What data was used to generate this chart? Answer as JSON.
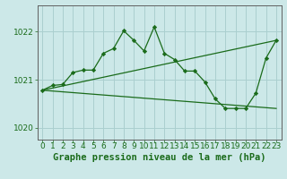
{
  "title": "Graphe pression niveau de la mer (hPa)",
  "background_color": "#cce8e8",
  "grid_color": "#aacfcf",
  "line_color": "#1a6b1a",
  "marker_color": "#1a6b1a",
  "xlim": [
    -0.5,
    23.5
  ],
  "ylim": [
    1019.75,
    1022.55
  ],
  "yticks": [
    1020,
    1021,
    1022
  ],
  "xticks": [
    0,
    1,
    2,
    3,
    4,
    5,
    6,
    7,
    8,
    9,
    10,
    11,
    12,
    13,
    14,
    15,
    16,
    17,
    18,
    19,
    20,
    21,
    22,
    23
  ],
  "line1_x": [
    0,
    1,
    2,
    3,
    4,
    5,
    6,
    7,
    8,
    9,
    10,
    11,
    12,
    13,
    14,
    15,
    16,
    17,
    18,
    19,
    20,
    21,
    22,
    23
  ],
  "line1_y": [
    1020.78,
    1020.88,
    1020.9,
    1021.15,
    1021.2,
    1021.2,
    1021.55,
    1021.65,
    1022.02,
    1021.82,
    1021.6,
    1022.1,
    1021.55,
    1021.42,
    1021.18,
    1021.18,
    1020.95,
    1020.6,
    1020.4,
    1020.4,
    1020.4,
    1020.72,
    1021.45,
    1021.82
  ],
  "line2_x": [
    0,
    23
  ],
  "line2_y": [
    1020.78,
    1021.82
  ],
  "line3_x": [
    0,
    23
  ],
  "line3_y": [
    1020.78,
    1020.4
  ],
  "tick_fontsize": 6.5,
  "label_fontsize": 7.5
}
